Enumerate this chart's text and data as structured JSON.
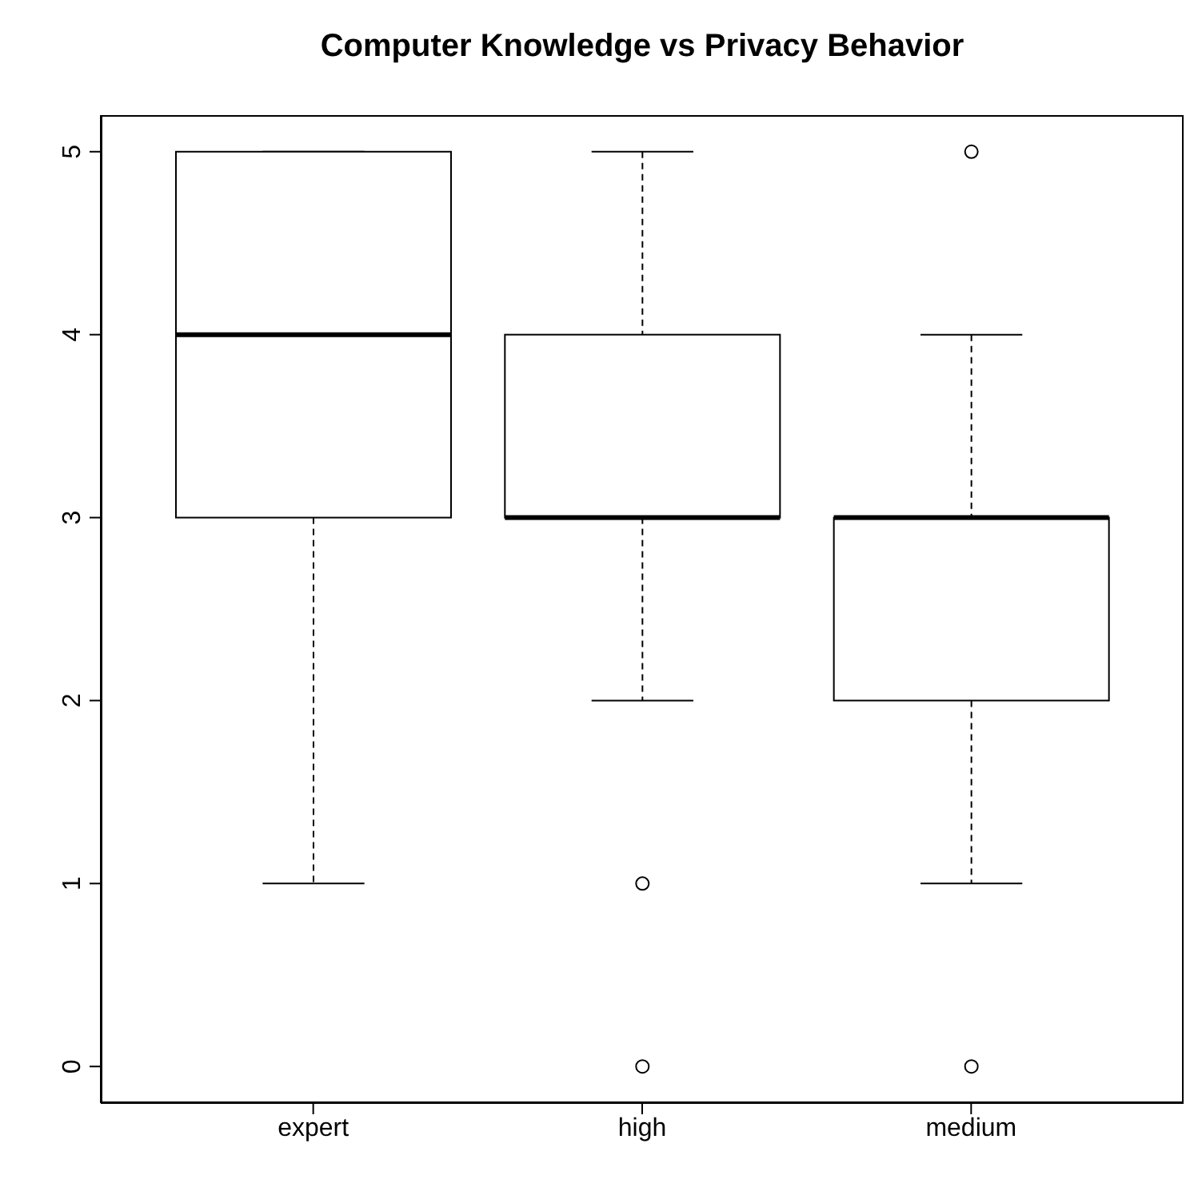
{
  "chart_data": {
    "type": "box",
    "title": "Computer Knowledge vs Privacy Behavior",
    "categories": [
      "expert",
      "high",
      "medium"
    ],
    "series": [
      {
        "color": "#000000",
        "boxes": [
          {
            "low": 1,
            "q1": 3,
            "median": 4,
            "q3": 5,
            "high": 5
          },
          {
            "low": 2,
            "q1": 3,
            "median": 3,
            "q3": 4,
            "high": 5,
            "outliers": [
              1,
              0
            ]
          },
          {
            "low": 1,
            "q1": 2,
            "median": 3,
            "q3": 3,
            "high": 4,
            "outliers": [
              5,
              0
            ]
          }
        ]
      }
    ],
    "ylim": [
      -0.2,
      5.2
    ],
    "yticks": [
      0,
      1,
      2,
      3,
      4,
      5
    ]
  }
}
